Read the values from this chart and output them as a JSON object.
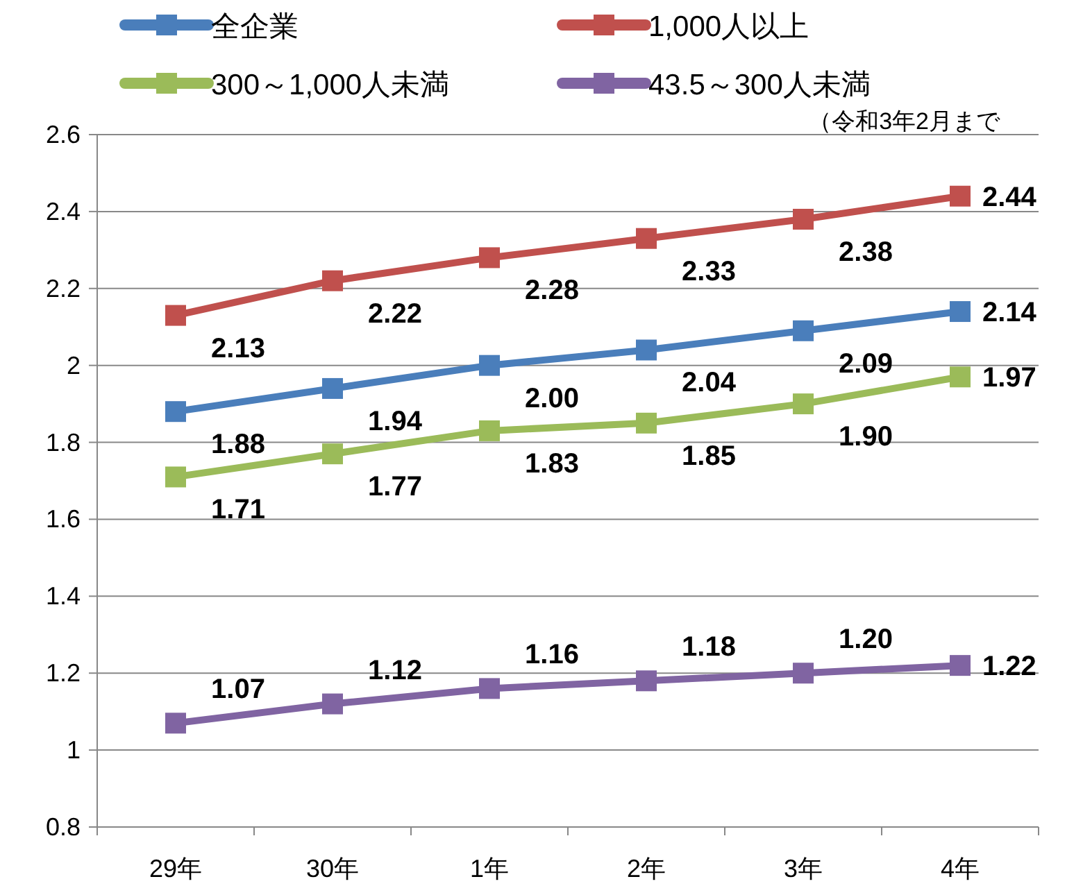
{
  "chart_data": {
    "type": "line",
    "categories": [
      "29年",
      "30年",
      "1年",
      "2年",
      "3年",
      "4年"
    ],
    "series": [
      {
        "name": "全企業",
        "color": "#4a7ebb",
        "values": [
          1.88,
          1.94,
          2.0,
          2.04,
          2.09,
          2.14
        ],
        "value_labels": [
          "1.88",
          "1.94",
          "2.00",
          "2.04",
          "2.09",
          "2.14"
        ]
      },
      {
        "name": "1,000人以上",
        "color": "#c0504d",
        "values": [
          2.13,
          2.22,
          2.28,
          2.33,
          2.38,
          2.44
        ],
        "value_labels": [
          "2.13",
          "2.22",
          "2.28",
          "2.33",
          "2.38",
          "2.44"
        ]
      },
      {
        "name": "300～1,000人未満",
        "color": "#9bbb59",
        "values": [
          1.71,
          1.77,
          1.83,
          1.85,
          1.9,
          1.97
        ],
        "value_labels": [
          "1.71",
          "1.77",
          "1.83",
          "1.85",
          "1.90",
          "1.97"
        ]
      },
      {
        "name": "43.5～300人未満",
        "color": "#8064a2",
        "values": [
          1.07,
          1.12,
          1.16,
          1.18,
          1.2,
          1.22
        ],
        "value_labels": [
          "1.07",
          "1.12",
          "1.16",
          "1.18",
          "1.20",
          "1.22"
        ]
      }
    ],
    "annotations": [
      "（令和3年2月まで"
    ],
    "ylim": [
      0.8,
      2.6
    ],
    "yticks": [
      0.8,
      1,
      1.2,
      1.4,
      1.6,
      1.8,
      2,
      2.2,
      2.4,
      2.6
    ],
    "grid": "y",
    "legend": "top",
    "marker": "square",
    "line_style": "solid"
  }
}
